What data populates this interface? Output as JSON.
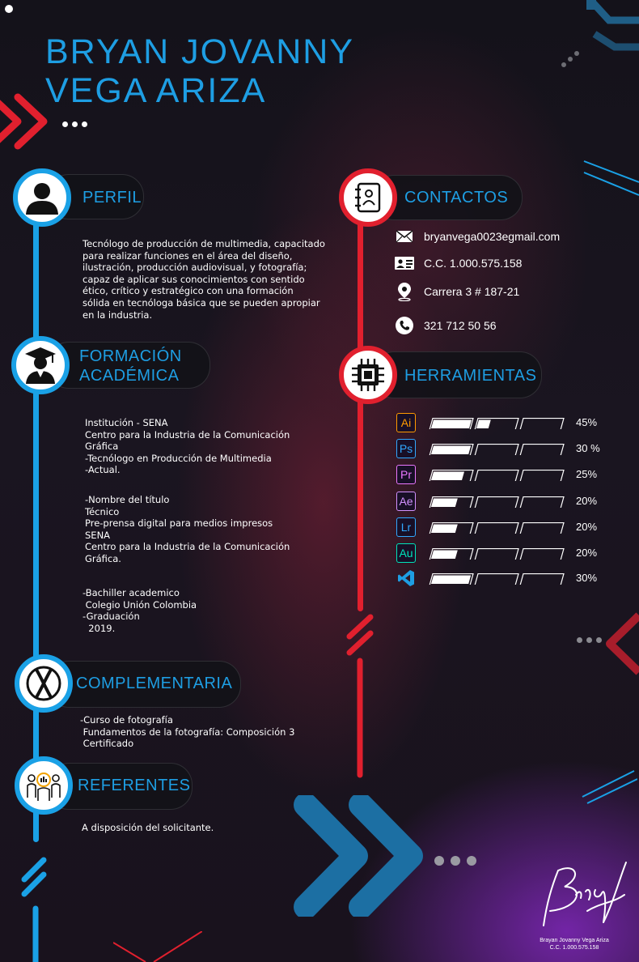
{
  "header": {
    "name_line1": "BRYAN JOVANNY",
    "name_line2": "VEGA ARIZA"
  },
  "sections": {
    "perfil": {
      "title": "PERFIL",
      "icon": "user-icon",
      "text": "Tecnólogo de producción de multimedia, capacitado\npara realizar funciones en el área del diseño,\nilustración, producción audiovisual, y fotografía;\ncapaz de aplicar sus conocimientos con sentido\nético, crítico y estratégico con una formación\nsólida en tecnóloga básica que se pueden apropiar\nen la industria."
    },
    "formacion": {
      "title_line1": "FORMACIÓN",
      "title_line2": "ACADÉMICA",
      "icon": "graduate-icon",
      "block1": "Institución - SENA\nCentro para la Industria de la Comunicación\nGráfica\n-Tecnólogo en Producción de Multimedia\n-Actual.",
      "block2": "-Nombre del título\nTécnico\nPre-prensa digital para medios impresos\nSENA\nCentro para la Industria de la Comunicación\nGráfica.",
      "block3": "-Bachiller academico\n Colegio Unión Colombia\n-Graduación\n  2019."
    },
    "complementaria": {
      "title": "COMPLEMENTARIA",
      "icon": "x-circle-icon",
      "text": "-Curso de fotografía\n Fundamentos de la fotografía: Composición 3\n Certificado"
    },
    "referentes": {
      "title": "REFERENTES",
      "icon": "people-icon",
      "text": "A disposición del solicitante."
    },
    "contactos": {
      "title": "CONTACTOS",
      "icon": "contact-book-icon",
      "items": [
        {
          "icon": "mail-icon",
          "text": "bryanvega0023egmail.com"
        },
        {
          "icon": "id-card-icon",
          "text": "C.C.  1.000.575.158"
        },
        {
          "icon": "location-pin-icon",
          "text": "Carrera 3 # 187-21"
        },
        {
          "icon": "phone-icon",
          "text": "321 712 50 56"
        }
      ]
    },
    "herramientas": {
      "title": "HERRAMIENTAS",
      "icon": "chip-icon",
      "tools": [
        {
          "abbr": "Ai",
          "icon": "illustrator-icon",
          "color": "#ff9a00",
          "level": 0.45,
          "percent": "45%"
        },
        {
          "abbr": "Ps",
          "icon": "photoshop-icon",
          "color": "#31a8ff",
          "level": 0.3,
          "percent": "30 %"
        },
        {
          "abbr": "Pr",
          "icon": "premiere-icon",
          "color": "#ea77ff",
          "level": 0.25,
          "percent": "25%"
        },
        {
          "abbr": "Ae",
          "icon": "after-effects-icon",
          "color": "#d291ff",
          "level": 0.2,
          "percent": "20%"
        },
        {
          "abbr": "Lr",
          "icon": "lightroom-icon",
          "color": "#31a8ff",
          "level": 0.2,
          "percent": "20%"
        },
        {
          "abbr": "Au",
          "icon": "audition-icon",
          "color": "#00e4bb",
          "level": 0.2,
          "percent": "20%"
        },
        {
          "abbr": "",
          "icon": "vscode-icon",
          "color": "#1e9ee3",
          "level": 0.3,
          "percent": "30%"
        }
      ]
    }
  },
  "signature": {
    "name": "Brayan Jovanny Vega Ariza",
    "id": "C.C.  1.000.575.158",
    "handwriting": "Brian"
  },
  "colors": {
    "accent_blue": "#1e9ee3",
    "accent_red": "#e1202e",
    "background": "#16121b"
  }
}
